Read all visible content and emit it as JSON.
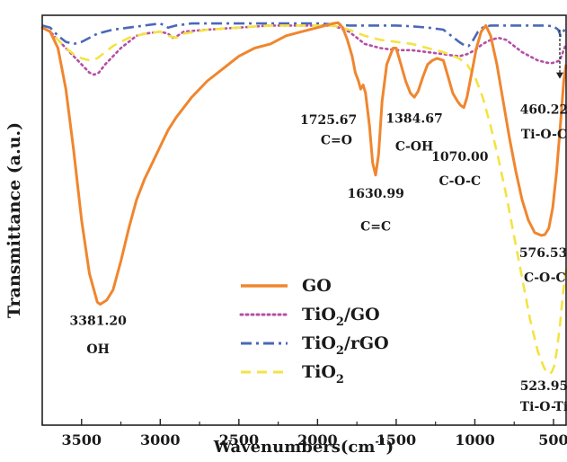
{
  "chart_data": {
    "type": "line",
    "xlabel": "Wavenumbers(cm",
    "xlabel_sup": "-1",
    "xlabel_close": ")",
    "ylabel": "Transmittance (a.u.)",
    "xlim": [
      3750,
      420
    ],
    "ylim": [
      0,
      100
    ],
    "x_ticks": [
      3500,
      3000,
      2500,
      2000,
      1500,
      1000,
      500
    ],
    "grid": false,
    "legend_position": "bottom-center",
    "series": [
      {
        "name": "GO",
        "color": "#f0862e",
        "dash": "solid",
        "points": [
          [
            3750,
            97
          ],
          [
            3700,
            96
          ],
          [
            3650,
            92
          ],
          [
            3600,
            82
          ],
          [
            3550,
            67
          ],
          [
            3500,
            50
          ],
          [
            3450,
            37
          ],
          [
            3400,
            30
          ],
          [
            3381,
            29.5
          ],
          [
            3340,
            30.5
          ],
          [
            3300,
            33
          ],
          [
            3250,
            40
          ],
          [
            3200,
            48
          ],
          [
            3150,
            55
          ],
          [
            3100,
            60
          ],
          [
            3050,
            64
          ],
          [
            3000,
            68
          ],
          [
            2950,
            72
          ],
          [
            2900,
            75
          ],
          [
            2800,
            80
          ],
          [
            2700,
            84
          ],
          [
            2600,
            87
          ],
          [
            2500,
            90
          ],
          [
            2400,
            92
          ],
          [
            2300,
            93
          ],
          [
            2200,
            95
          ],
          [
            2100,
            96
          ],
          [
            2000,
            97
          ],
          [
            1950,
            97.5
          ],
          [
            1900,
            98
          ],
          [
            1870,
            98.2
          ],
          [
            1840,
            97
          ],
          [
            1810,
            94
          ],
          [
            1780,
            90
          ],
          [
            1760,
            86
          ],
          [
            1740,
            84
          ],
          [
            1726,
            82
          ],
          [
            1710,
            83
          ],
          [
            1695,
            81
          ],
          [
            1670,
            73
          ],
          [
            1650,
            64
          ],
          [
            1631,
            61
          ],
          [
            1612,
            66
          ],
          [
            1590,
            79
          ],
          [
            1560,
            88
          ],
          [
            1520,
            92
          ],
          [
            1500,
            92
          ],
          [
            1470,
            88
          ],
          [
            1440,
            84
          ],
          [
            1410,
            81
          ],
          [
            1385,
            80
          ],
          [
            1360,
            81.5
          ],
          [
            1330,
            85
          ],
          [
            1300,
            88
          ],
          [
            1270,
            89
          ],
          [
            1240,
            89.5
          ],
          [
            1200,
            89
          ],
          [
            1170,
            85
          ],
          [
            1140,
            81
          ],
          [
            1110,
            79
          ],
          [
            1090,
            78
          ],
          [
            1070,
            77.5
          ],
          [
            1050,
            80
          ],
          [
            1020,
            86
          ],
          [
            990,
            92
          ],
          [
            960,
            96
          ],
          [
            930,
            97.5
          ],
          [
            900,
            95
          ],
          [
            860,
            88
          ],
          [
            820,
            79
          ],
          [
            780,
            70
          ],
          [
            740,
            62
          ],
          [
            700,
            55
          ],
          [
            660,
            50
          ],
          [
            620,
            47
          ],
          [
            590,
            46.5
          ],
          [
            577,
            46.3
          ],
          [
            555,
            46.5
          ],
          [
            530,
            48
          ],
          [
            505,
            53
          ],
          [
            480,
            62
          ],
          [
            455,
            74
          ],
          [
            435,
            84
          ],
          [
            420,
            88
          ]
        ]
      },
      {
        "name": "TiO2/GO",
        "color": "#b44fa6",
        "dash": "dot",
        "points": [
          [
            3750,
            97
          ],
          [
            3700,
            96
          ],
          [
            3650,
            94
          ],
          [
            3600,
            92
          ],
          [
            3550,
            90
          ],
          [
            3500,
            88
          ],
          [
            3450,
            86
          ],
          [
            3420,
            85.5
          ],
          [
            3390,
            86
          ],
          [
            3350,
            88
          ],
          [
            3300,
            90
          ],
          [
            3250,
            92
          ],
          [
            3200,
            93.5
          ],
          [
            3150,
            95
          ],
          [
            3100,
            95.5
          ],
          [
            3000,
            96
          ],
          [
            2950,
            95.5
          ],
          [
            2920,
            94.5
          ],
          [
            2890,
            95
          ],
          [
            2850,
            96
          ],
          [
            2700,
            96.5
          ],
          [
            2500,
            97
          ],
          [
            2300,
            97.5
          ],
          [
            2100,
            97.5
          ],
          [
            2000,
            97.5
          ],
          [
            1900,
            97.5
          ],
          [
            1800,
            96
          ],
          [
            1700,
            93
          ],
          [
            1600,
            92
          ],
          [
            1500,
            91.5
          ],
          [
            1400,
            91.5
          ],
          [
            1300,
            91
          ],
          [
            1200,
            90.5
          ],
          [
            1100,
            90
          ],
          [
            1050,
            90.5
          ],
          [
            1000,
            91.5
          ],
          [
            950,
            93
          ],
          [
            900,
            94
          ],
          [
            850,
            94.5
          ],
          [
            800,
            94
          ],
          [
            750,
            92.5
          ],
          [
            700,
            91
          ],
          [
            650,
            90
          ],
          [
            600,
            89
          ],
          [
            550,
            88.5
          ],
          [
            520,
            88.3
          ],
          [
            490,
            88.5
          ],
          [
            460,
            89
          ],
          [
            440,
            91
          ],
          [
            420,
            93
          ]
        ]
      },
      {
        "name": "TiO2/rGO",
        "color": "#4a68b8",
        "dash": "dashdot",
        "points": [
          [
            3750,
            97.5
          ],
          [
            3700,
            97
          ],
          [
            3650,
            95
          ],
          [
            3600,
            93.5
          ],
          [
            3550,
            93
          ],
          [
            3500,
            93.5
          ],
          [
            3450,
            94.5
          ],
          [
            3400,
            95.5
          ],
          [
            3300,
            96.5
          ],
          [
            3200,
            97
          ],
          [
            3100,
            97.5
          ],
          [
            3000,
            98
          ],
          [
            2950,
            97
          ],
          [
            2900,
            97.5
          ],
          [
            2800,
            98
          ],
          [
            2600,
            98
          ],
          [
            2400,
            98
          ],
          [
            2200,
            98
          ],
          [
            2000,
            98
          ],
          [
            1900,
            97.8
          ],
          [
            1800,
            97.5
          ],
          [
            1700,
            97.5
          ],
          [
            1600,
            97.5
          ],
          [
            1500,
            97.5
          ],
          [
            1400,
            97.3
          ],
          [
            1300,
            97
          ],
          [
            1200,
            96.5
          ],
          [
            1150,
            95
          ],
          [
            1100,
            93.5
          ],
          [
            1060,
            92.5
          ],
          [
            1040,
            92.5
          ],
          [
            1010,
            94
          ],
          [
            980,
            96
          ],
          [
            950,
            97
          ],
          [
            900,
            97.5
          ],
          [
            800,
            97.5
          ],
          [
            700,
            97.5
          ],
          [
            600,
            97.5
          ],
          [
            550,
            97.5
          ],
          [
            500,
            97.3
          ],
          [
            470,
            96.5
          ],
          [
            455,
            95
          ],
          [
            445,
            95.5
          ],
          [
            430,
            96.5
          ],
          [
            420,
            97
          ]
        ]
      },
      {
        "name": "TiO2",
        "color": "#f3e343",
        "dash": "dash",
        "points": [
          [
            3750,
            97
          ],
          [
            3700,
            96
          ],
          [
            3650,
            94
          ],
          [
            3600,
            92
          ],
          [
            3550,
            90.5
          ],
          [
            3500,
            89.5
          ],
          [
            3450,
            89
          ],
          [
            3400,
            89.5
          ],
          [
            3350,
            91
          ],
          [
            3300,
            92.5
          ],
          [
            3200,
            94.5
          ],
          [
            3100,
            95.5
          ],
          [
            3000,
            96
          ],
          [
            2950,
            95
          ],
          [
            2900,
            94.5
          ],
          [
            2850,
            95.5
          ],
          [
            2700,
            96.5
          ],
          [
            2500,
            97
          ],
          [
            2300,
            97.5
          ],
          [
            2100,
            97.5
          ],
          [
            2000,
            97.5
          ],
          [
            1900,
            97.5
          ],
          [
            1800,
            96.5
          ],
          [
            1700,
            95
          ],
          [
            1600,
            94
          ],
          [
            1500,
            93.5
          ],
          [
            1400,
            93
          ],
          [
            1300,
            92
          ],
          [
            1200,
            91
          ],
          [
            1100,
            89.5
          ],
          [
            1050,
            88
          ],
          [
            1000,
            85
          ],
          [
            950,
            80
          ],
          [
            900,
            73
          ],
          [
            850,
            65
          ],
          [
            800,
            56
          ],
          [
            750,
            46
          ],
          [
            700,
            36
          ],
          [
            650,
            26
          ],
          [
            600,
            18
          ],
          [
            560,
            14
          ],
          [
            540,
            12.8
          ],
          [
            524,
            12.5
          ],
          [
            510,
            13
          ],
          [
            495,
            14.5
          ],
          [
            480,
            18
          ],
          [
            460,
            24
          ],
          [
            440,
            32
          ],
          [
            420,
            38
          ]
        ]
      }
    ],
    "legend": [
      {
        "label": "GO",
        "sub": "",
        "rest": ""
      },
      {
        "label": "TiO",
        "sub": "2",
        "rest": "/GO"
      },
      {
        "label": "TiO",
        "sub": "2",
        "rest": "/rGO"
      },
      {
        "label": "TiO",
        "sub": "2",
        "rest": ""
      }
    ],
    "annotations": [
      {
        "text": "1725.67",
        "wn": 1930,
        "t": 73.5
      },
      {
        "text": "C=O",
        "wn": 1880,
        "t": 68.5
      },
      {
        "text": "1384.67",
        "wn": 1385,
        "t": 73.8
      },
      {
        "text": "C-OH",
        "wn": 1385,
        "t": 67.0
      },
      {
        "text": "1070.00",
        "wn": 1095,
        "t": 64.5
      },
      {
        "text": "C-O-C",
        "wn": 1095,
        "t": 58.5
      },
      {
        "text": "460.22",
        "wn": 560,
        "t": 76.0
      },
      {
        "text": "Ti-O-C",
        "wn": 560,
        "t": 70.0
      },
      {
        "text": "1630.99",
        "wn": 1630,
        "t": 55.5
      },
      {
        "text": "C=C",
        "wn": 1630,
        "t": 47.5
      },
      {
        "text": "576.53",
        "wn": 565,
        "t": 41.0
      },
      {
        "text": "C-O-C",
        "wn": 555,
        "t": 35.0
      },
      {
        "text": "3381.20",
        "wn": 3395,
        "t": 24.5
      },
      {
        "text": "OH",
        "wn": 3395,
        "t": 17.5
      },
      {
        "text": "523.95",
        "wn": 560,
        "t": 8.5
      },
      {
        "text": "Ti-O-Ti",
        "wn": 560,
        "t": 3.5
      }
    ],
    "arrow": {
      "wn": 460,
      "from_t": 96.5,
      "to_t": 84.5
    }
  }
}
